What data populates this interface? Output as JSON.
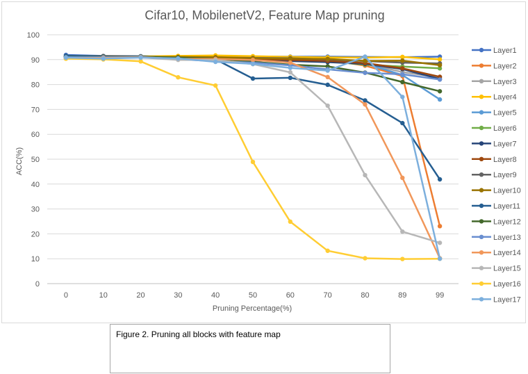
{
  "caption": "Figure 2. Pruning all blocks with feature map",
  "chart_data": {
    "type": "line",
    "title": "Cifar10, MobilenetV2, Feature Map pruning",
    "xlabel": "Pruning Percentage(%)",
    "ylabel": "ACC(%)",
    "categories": [
      "0",
      "10",
      "20",
      "30",
      "40",
      "50",
      "60",
      "70",
      "80",
      "89",
      "99"
    ],
    "ylim": [
      0,
      100
    ],
    "yticks": [
      0,
      10,
      20,
      30,
      40,
      50,
      60,
      70,
      80,
      90,
      100
    ],
    "grid": "horizontal",
    "legend_position": "right",
    "series": [
      {
        "name": "Layer1",
        "color": "#4472c4",
        "values": [
          91.9,
          91.5,
          91.4,
          91.2,
          91.3,
          91.2,
          91.2,
          91.2,
          91.1,
          91.0,
          91.2
        ]
      },
      {
        "name": "Layer2",
        "color": "#ed7d31",
        "values": [
          91.0,
          91.4,
          91.3,
          91.1,
          91.0,
          90.9,
          90.6,
          89.9,
          87.6,
          83.4,
          23.1
        ]
      },
      {
        "name": "Layer3",
        "color": "#a5a5a5",
        "values": [
          90.9,
          91.0,
          91.2,
          91.0,
          90.8,
          90.7,
          90.5,
          90.2,
          88.5,
          85.0,
          82.9
        ]
      },
      {
        "name": "Layer4",
        "color": "#ffc000",
        "values": [
          90.4,
          91.1,
          91.3,
          91.5,
          91.7,
          91.4,
          91.1,
          90.9,
          90.8,
          91.1,
          90.1
        ]
      },
      {
        "name": "Layer5",
        "color": "#5b9bd5",
        "values": [
          91.0,
          91.0,
          91.2,
          90.6,
          90.1,
          90.0,
          90.2,
          90.0,
          88.5,
          83.8,
          74.0
        ]
      },
      {
        "name": "Layer6",
        "color": "#70ad47",
        "values": [
          91.0,
          91.0,
          91.0,
          90.7,
          90.6,
          90.4,
          90.1,
          89.3,
          88.0,
          87.2,
          86.5
        ]
      },
      {
        "name": "Layer7",
        "color": "#264478",
        "values": [
          91.4,
          91.3,
          91.2,
          90.9,
          90.5,
          89.7,
          89.4,
          89.0,
          88.3,
          86.2,
          82.2
        ]
      },
      {
        "name": "Layer8",
        "color": "#9e480e",
        "values": [
          90.8,
          91.0,
          91.0,
          90.8,
          90.5,
          90.2,
          89.9,
          89.5,
          88.6,
          86.5,
          83.1
        ]
      },
      {
        "name": "Layer9",
        "color": "#636363",
        "values": [
          91.1,
          91.0,
          91.1,
          90.9,
          90.9,
          90.7,
          90.6,
          90.1,
          89.4,
          88.8,
          88.5
        ]
      },
      {
        "name": "Layer10",
        "color": "#997300",
        "values": [
          91.2,
          91.0,
          91.1,
          91.1,
          91.0,
          90.6,
          90.4,
          90.3,
          89.5,
          89.6,
          87.8
        ]
      },
      {
        "name": "Layer11",
        "color": "#255e91",
        "values": [
          91.5,
          91.3,
          91.3,
          90.6,
          90.1,
          82.4,
          82.7,
          79.9,
          73.6,
          64.5,
          41.9
        ]
      },
      {
        "name": "Layer12",
        "color": "#43682b",
        "values": [
          91.1,
          91.2,
          91.2,
          90.8,
          90.4,
          89.1,
          88.0,
          87.3,
          84.8,
          81.0,
          77.3
        ]
      },
      {
        "name": "Layer13",
        "color": "#698ed0",
        "values": [
          91.0,
          91.0,
          91.1,
          90.1,
          89.4,
          88.8,
          87.7,
          86.1,
          84.7,
          84.1,
          82.0
        ]
      },
      {
        "name": "Layer14",
        "color": "#f1975a",
        "values": [
          90.7,
          90.7,
          91.0,
          90.3,
          90.3,
          89.9,
          88.8,
          83.0,
          72.0,
          42.5,
          10.2
        ]
      },
      {
        "name": "Layer15",
        "color": "#b7b7b7",
        "values": [
          90.6,
          90.5,
          90.9,
          89.9,
          89.9,
          88.2,
          84.9,
          71.5,
          43.6,
          20.9,
          16.4
        ]
      },
      {
        "name": "Layer16",
        "color": "#ffcd33",
        "values": [
          90.4,
          90.1,
          89.3,
          82.9,
          79.6,
          48.9,
          24.9,
          13.2,
          10.2,
          9.9,
          10.0
        ]
      },
      {
        "name": "Layer17",
        "color": "#7cafdd",
        "values": [
          90.8,
          90.4,
          90.8,
          90.5,
          89.1,
          88.3,
          86.7,
          85.6,
          91.2,
          75.0,
          10.0
        ]
      }
    ]
  }
}
